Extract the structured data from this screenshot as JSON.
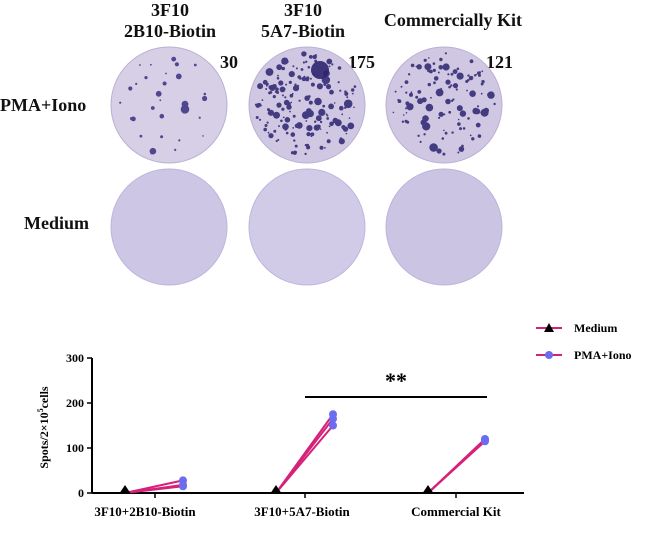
{
  "columns": [
    {
      "line1": "3F10",
      "line2": "2B10-Biotin",
      "count": "30"
    },
    {
      "line1": "3F10",
      "line2": "5A7-Biotin",
      "count": "175"
    },
    {
      "line1": "Commercially Kit",
      "line2": "",
      "count": "121"
    }
  ],
  "row_labels": {
    "pma": "PMA+Iono",
    "medium": "Medium"
  },
  "colors": {
    "spot_well_bg": "#d9d2e8",
    "spot": "#2c2470",
    "medium_well": "#cfc9e6",
    "medium_line": "#d6207a",
    "pma_line": "#d6207a",
    "pma_marker": "#6b6cf0",
    "medium_marker": "#000000"
  },
  "chart_data": {
    "type": "line",
    "ylabel_prefix": "Spots/2×10",
    "ylabel_sup": "5",
    "ylabel_suffix": "cells",
    "ylim": [
      0,
      300
    ],
    "yticks": [
      "0",
      "100",
      "200",
      "300"
    ],
    "categories": [
      "3F10+2B10-Biotin",
      "3F10+5A7-Biotin",
      "Commercial Kit"
    ],
    "series": [
      {
        "name": "Medium",
        "marker": "triangle"
      },
      {
        "name": "PMA+Iono",
        "marker": "circle"
      }
    ],
    "pairs": [
      {
        "group": 0,
        "medium": [
          0,
          0,
          0
        ],
        "pma": [
          28,
          18,
          15
        ]
      },
      {
        "group": 1,
        "medium": [
          0,
          0,
          0
        ],
        "pma": [
          175,
          165,
          150
        ]
      },
      {
        "group": 2,
        "medium": [
          0,
          0,
          0
        ],
        "pma": [
          120,
          118,
          115
        ]
      }
    ],
    "significance": {
      "label": "**",
      "from_group": 1,
      "to_group": 2,
      "y": 210
    }
  }
}
